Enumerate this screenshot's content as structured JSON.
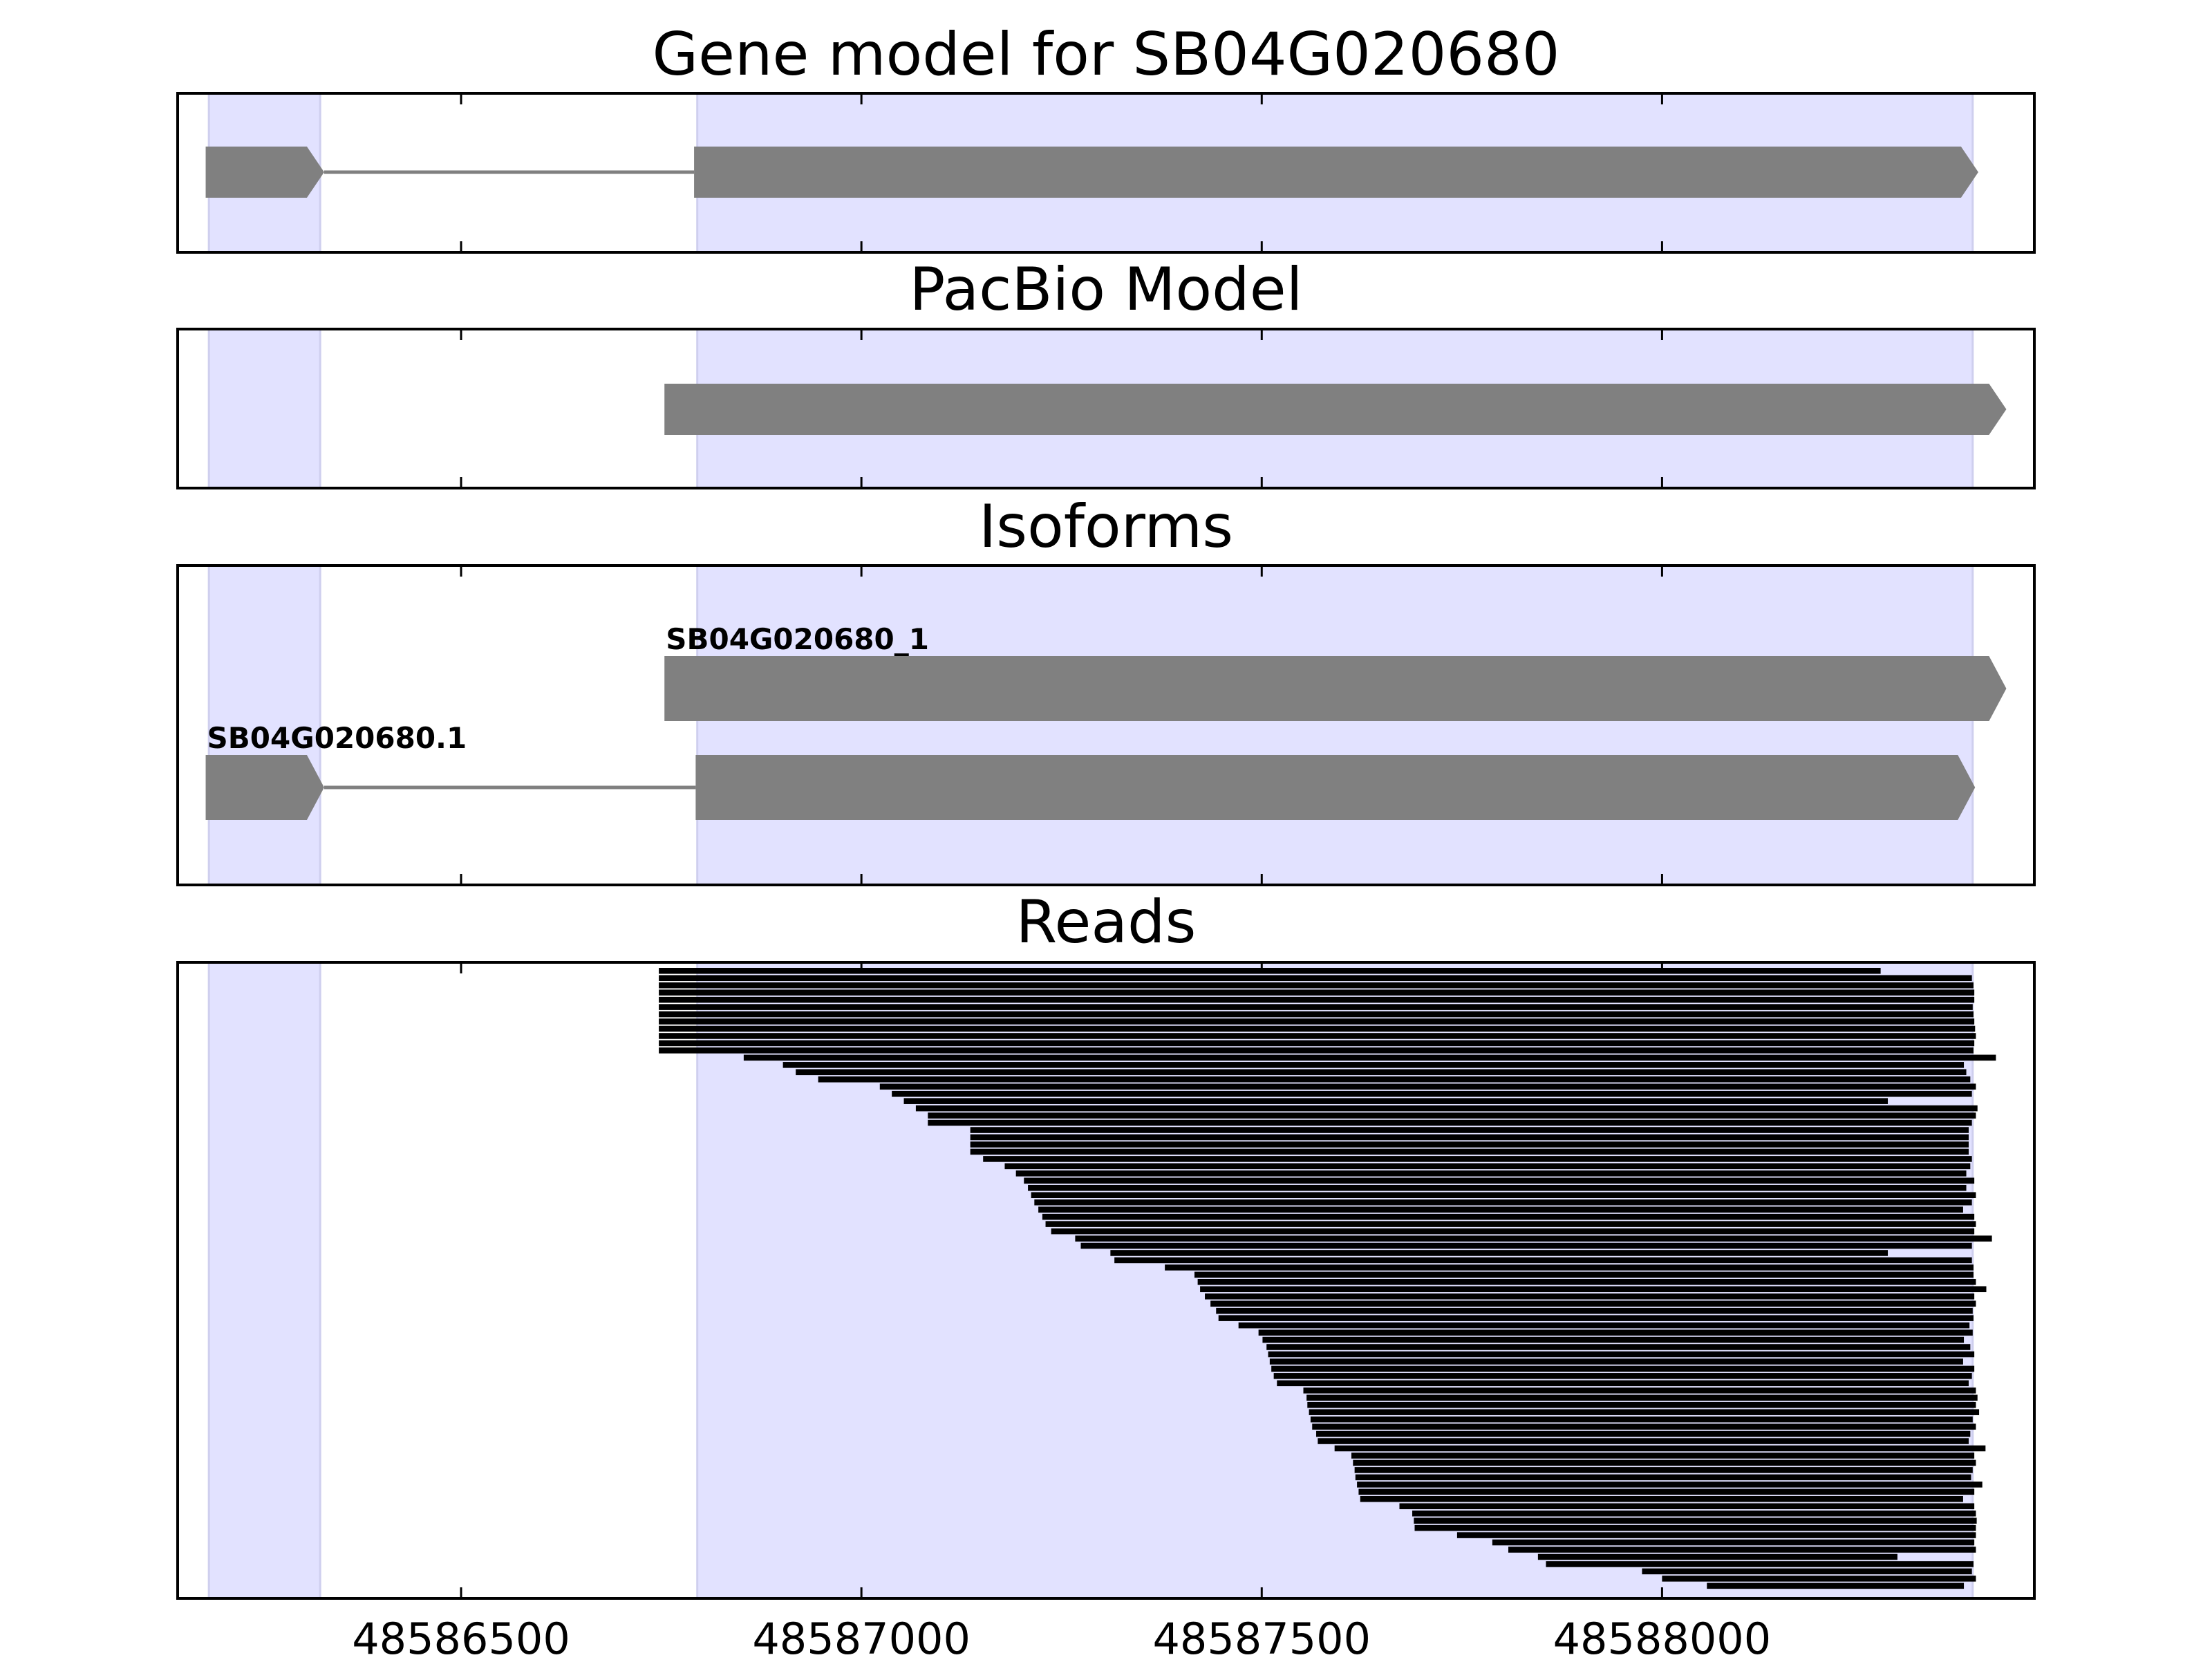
{
  "chart_data": [
    {
      "type": "gene-model",
      "title": "Gene model for SB04G020680",
      "xlim": [
        48586146,
        48588465
      ],
      "xticks": [
        48586500,
        48587000,
        48587500,
        48588000
      ],
      "tick_labels": false,
      "shaded_regions": [
        [
          48586185,
          48586324
        ],
        [
          48586795,
          48588388
        ]
      ],
      "shade_color": "#e2e2ff",
      "color": "#808080",
      "transcripts": [
        {
          "exons": [
            [
              48586181,
              48586329
            ],
            [
              48586791,
              48588395
            ]
          ]
        }
      ]
    },
    {
      "type": "gene-model",
      "title": "PacBio Model",
      "xlim": [
        48586146,
        48588465
      ],
      "xticks": [
        48586500,
        48587000,
        48587500,
        48588000
      ],
      "tick_labels": false,
      "shaded_regions": [
        [
          48586185,
          48586324
        ],
        [
          48586795,
          48588388
        ]
      ],
      "shade_color": "#e2e2ff",
      "color": "#808080",
      "transcripts": [
        {
          "exons": [
            [
              48586754,
              48588430
            ]
          ]
        }
      ]
    },
    {
      "type": "gene-model",
      "title": "Isoforms",
      "xlim": [
        48586146,
        48588465
      ],
      "xticks": [
        48586500,
        48587000,
        48587500,
        48588000
      ],
      "tick_labels": false,
      "shaded_regions": [
        [
          48586185,
          48586324
        ],
        [
          48586795,
          48588388
        ]
      ],
      "shade_color": "#e2e2ff",
      "color": "#808080",
      "transcripts": [
        {
          "name": "SB04G020680_1",
          "exons": [
            [
              48586754,
              48588430
            ]
          ]
        },
        {
          "name": "SB04G020680.1",
          "exons": [
            [
              48586181,
              48586329
            ],
            [
              48586793,
              48588391
            ]
          ]
        }
      ]
    },
    {
      "type": "reads",
      "title": "Reads",
      "xlim": [
        48586146,
        48588465
      ],
      "xticks": [
        48586500,
        48587000,
        48587500,
        48588000
      ],
      "tick_labels": true,
      "shaded_regions": [
        [
          48586185,
          48586324
        ],
        [
          48586795,
          48588388
        ]
      ],
      "shade_color": "#e2e2ff",
      "color": "#000000",
      "starts": [
        48586747,
        48586747,
        48586747,
        48586747,
        48586747,
        48586747,
        48586747,
        48586747,
        48586747,
        48586747,
        48586747,
        48586747,
        48586853,
        48586902,
        48586918,
        48586946,
        48587023,
        48587038,
        48587053,
        48587068,
        48587083,
        48587083,
        48587136,
        48587136,
        48587136,
        48587136,
        48587152,
        48587179,
        48587193,
        48587203,
        48587208,
        48587212,
        48587216,
        48587221,
        48587226,
        48587230,
        48587237,
        48587267,
        48587274,
        48587311,
        48587316,
        48587379,
        48587416,
        48587420,
        48587423,
        48587429,
        48587436,
        48587443,
        48587446,
        48587471,
        48587496,
        48587501,
        48587506,
        48587508,
        48587510,
        48587512,
        48587515,
        48587519,
        48587552,
        48587556,
        48587557,
        48587559,
        48587561,
        48587563,
        48587568,
        48587570,
        48587591,
        48587612,
        48587614,
        48587616,
        48587617,
        48587619,
        48587621,
        48587623,
        48587672,
        48587688,
        48587690,
        48587691,
        48587744,
        48587788,
        48587808,
        48587845,
        48587855,
        48587975,
        48588000,
        48588056
      ],
      "ends": [
        48588273,
        48588387,
        48588389,
        48588390,
        48588390,
        48588388,
        48588389,
        48588390,
        48588391,
        48588392,
        48588390,
        48588389,
        48588417,
        48588377,
        48588380,
        48588385,
        48588392,
        48588387,
        48588282,
        48588394,
        48588392,
        48588387,
        48588383,
        48588383,
        48588383,
        48588383,
        48588387,
        48588385,
        48588380,
        48588390,
        48588380,
        48588392,
        48588387,
        48588376,
        48588390,
        48588392,
        48588390,
        48588412,
        48588387,
        48588282,
        48588387,
        48588389,
        48588389,
        48588392,
        48588405,
        48588390,
        48588392,
        48588388,
        48588389,
        48588384,
        48588388,
        48588377,
        48588385,
        48588390,
        48588376,
        48588390,
        48588387,
        48588383,
        48588392,
        48588394,
        48588392,
        48588396,
        48588388,
        48588392,
        48588385,
        48588383,
        48588404,
        48588390,
        48588392,
        48588388,
        48588386,
        48588400,
        48588390,
        48588376,
        48588390,
        48588392,
        48588393,
        48588392,
        48588392,
        48588390,
        48588392,
        48588294,
        48588389,
        48588387,
        48588392,
        48588377
      ]
    }
  ]
}
